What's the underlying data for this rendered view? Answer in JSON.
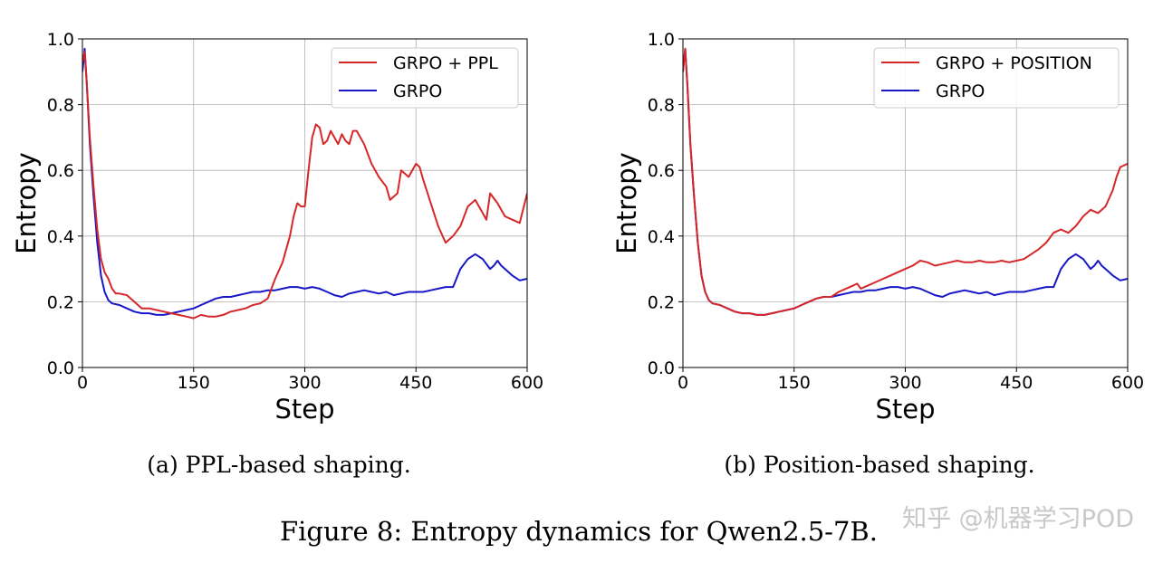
{
  "figure": {
    "caption": "Figure 8: Entropy dynamics for Qwen2.5-7B.",
    "watermark": "知乎 @机器学习POD"
  },
  "chart_data": [
    {
      "type": "line",
      "subcaption": "(a)  PPL-based shaping.",
      "xlabel": "Step",
      "ylabel": "Entropy",
      "xlim": [
        0,
        600
      ],
      "ylim": [
        0.0,
        1.0
      ],
      "xticks": [
        "0",
        "150",
        "300",
        "450",
        "600"
      ],
      "yticks": [
        "0.0",
        "0.2",
        "0.4",
        "0.6",
        "0.8",
        "1.0"
      ],
      "grid": true,
      "legend_position": "top-right",
      "series": [
        {
          "name": "GRPO + PPL",
          "color": "#d62728",
          "x": [
            0,
            3,
            6,
            10,
            15,
            20,
            25,
            30,
            35,
            40,
            45,
            50,
            60,
            70,
            80,
            90,
            100,
            110,
            120,
            130,
            140,
            150,
            160,
            170,
            180,
            190,
            200,
            210,
            220,
            230,
            240,
            250,
            260,
            270,
            275,
            280,
            285,
            290,
            295,
            300,
            305,
            310,
            315,
            320,
            325,
            330,
            335,
            340,
            345,
            350,
            355,
            360,
            365,
            370,
            375,
            380,
            390,
            400,
            410,
            415,
            420,
            425,
            430,
            435,
            440,
            445,
            450,
            455,
            460,
            470,
            480,
            490,
            500,
            510,
            520,
            530,
            540,
            545,
            550,
            560,
            570,
            580,
            590,
            600
          ],
          "y": [
            0.93,
            0.96,
            0.86,
            0.7,
            0.55,
            0.42,
            0.33,
            0.29,
            0.27,
            0.24,
            0.225,
            0.225,
            0.22,
            0.2,
            0.18,
            0.18,
            0.175,
            0.17,
            0.165,
            0.16,
            0.155,
            0.15,
            0.16,
            0.155,
            0.155,
            0.16,
            0.17,
            0.175,
            0.18,
            0.19,
            0.195,
            0.21,
            0.27,
            0.32,
            0.36,
            0.4,
            0.46,
            0.5,
            0.49,
            0.49,
            0.6,
            0.7,
            0.74,
            0.73,
            0.68,
            0.69,
            0.72,
            0.7,
            0.68,
            0.71,
            0.69,
            0.68,
            0.72,
            0.72,
            0.7,
            0.68,
            0.62,
            0.58,
            0.55,
            0.51,
            0.52,
            0.53,
            0.6,
            0.59,
            0.58,
            0.6,
            0.62,
            0.61,
            0.57,
            0.5,
            0.43,
            0.38,
            0.4,
            0.43,
            0.49,
            0.51,
            0.47,
            0.45,
            0.53,
            0.5,
            0.46,
            0.45,
            0.44,
            0.53
          ]
        },
        {
          "name": "GRPO",
          "color": "#1717c8",
          "x": [
            0,
            3,
            6,
            10,
            15,
            20,
            25,
            30,
            35,
            40,
            50,
            60,
            70,
            80,
            90,
            100,
            110,
            120,
            130,
            140,
            150,
            160,
            170,
            180,
            190,
            200,
            210,
            220,
            230,
            240,
            250,
            260,
            270,
            280,
            290,
            300,
            310,
            320,
            330,
            340,
            350,
            360,
            370,
            380,
            390,
            400,
            410,
            420,
            430,
            440,
            450,
            460,
            470,
            480,
            490,
            500,
            510,
            520,
            530,
            540,
            550,
            555,
            560,
            565,
            570,
            580,
            590,
            600
          ],
          "y": [
            0.9,
            0.97,
            0.86,
            0.68,
            0.52,
            0.38,
            0.28,
            0.23,
            0.205,
            0.195,
            0.19,
            0.18,
            0.17,
            0.165,
            0.165,
            0.16,
            0.16,
            0.165,
            0.17,
            0.175,
            0.18,
            0.19,
            0.2,
            0.21,
            0.215,
            0.215,
            0.22,
            0.225,
            0.23,
            0.23,
            0.235,
            0.235,
            0.24,
            0.245,
            0.245,
            0.24,
            0.245,
            0.24,
            0.23,
            0.22,
            0.215,
            0.225,
            0.23,
            0.235,
            0.23,
            0.225,
            0.23,
            0.22,
            0.225,
            0.23,
            0.23,
            0.23,
            0.235,
            0.24,
            0.245,
            0.245,
            0.3,
            0.33,
            0.345,
            0.33,
            0.3,
            0.31,
            0.325,
            0.31,
            0.3,
            0.28,
            0.265,
            0.27
          ]
        }
      ]
    },
    {
      "type": "line",
      "subcaption": "(b)  Position-based shaping.",
      "xlabel": "Step",
      "ylabel": "Entropy",
      "xlim": [
        0,
        600
      ],
      "ylim": [
        0.0,
        1.0
      ],
      "xticks": [
        "0",
        "150",
        "300",
        "450",
        "600"
      ],
      "yticks": [
        "0.0",
        "0.2",
        "0.4",
        "0.6",
        "0.8",
        "1.0"
      ],
      "grid": true,
      "legend_position": "top-right",
      "series": [
        {
          "name": "GRPO + POSITION",
          "color": "#d62728",
          "x": [
            0,
            3,
            6,
            10,
            15,
            20,
            25,
            30,
            35,
            40,
            50,
            60,
            70,
            80,
            90,
            100,
            110,
            120,
            130,
            140,
            150,
            160,
            170,
            180,
            190,
            200,
            210,
            220,
            230,
            235,
            240,
            250,
            260,
            270,
            280,
            290,
            300,
            310,
            320,
            330,
            340,
            350,
            360,
            370,
            380,
            390,
            400,
            410,
            420,
            430,
            440,
            450,
            460,
            470,
            480,
            490,
            500,
            510,
            520,
            530,
            540,
            550,
            560,
            570,
            580,
            585,
            590,
            600
          ],
          "y": [
            0.9,
            0.97,
            0.86,
            0.68,
            0.52,
            0.38,
            0.28,
            0.23,
            0.205,
            0.195,
            0.19,
            0.18,
            0.17,
            0.165,
            0.165,
            0.16,
            0.16,
            0.165,
            0.17,
            0.175,
            0.18,
            0.19,
            0.2,
            0.21,
            0.215,
            0.215,
            0.23,
            0.24,
            0.25,
            0.255,
            0.24,
            0.25,
            0.26,
            0.27,
            0.28,
            0.29,
            0.3,
            0.31,
            0.325,
            0.32,
            0.31,
            0.315,
            0.32,
            0.325,
            0.32,
            0.32,
            0.325,
            0.32,
            0.32,
            0.325,
            0.32,
            0.325,
            0.33,
            0.345,
            0.36,
            0.38,
            0.41,
            0.42,
            0.41,
            0.43,
            0.46,
            0.48,
            0.47,
            0.49,
            0.54,
            0.58,
            0.61,
            0.62
          ]
        },
        {
          "name": "GRPO",
          "color": "#1717c8",
          "x": [
            0,
            3,
            6,
            10,
            15,
            20,
            25,
            30,
            35,
            40,
            50,
            60,
            70,
            80,
            90,
            100,
            110,
            120,
            130,
            140,
            150,
            160,
            170,
            180,
            190,
            200,
            210,
            220,
            230,
            240,
            250,
            260,
            270,
            280,
            290,
            300,
            310,
            320,
            330,
            340,
            350,
            360,
            370,
            380,
            390,
            400,
            410,
            420,
            430,
            440,
            450,
            460,
            470,
            480,
            490,
            500,
            510,
            520,
            530,
            540,
            550,
            555,
            560,
            565,
            570,
            580,
            590,
            600
          ],
          "y": [
            0.9,
            0.97,
            0.86,
            0.68,
            0.52,
            0.38,
            0.28,
            0.23,
            0.205,
            0.195,
            0.19,
            0.18,
            0.17,
            0.165,
            0.165,
            0.16,
            0.16,
            0.165,
            0.17,
            0.175,
            0.18,
            0.19,
            0.2,
            0.21,
            0.215,
            0.215,
            0.22,
            0.225,
            0.23,
            0.23,
            0.235,
            0.235,
            0.24,
            0.245,
            0.245,
            0.24,
            0.245,
            0.24,
            0.23,
            0.22,
            0.215,
            0.225,
            0.23,
            0.235,
            0.23,
            0.225,
            0.23,
            0.22,
            0.225,
            0.23,
            0.23,
            0.23,
            0.235,
            0.24,
            0.245,
            0.245,
            0.3,
            0.33,
            0.345,
            0.33,
            0.3,
            0.31,
            0.325,
            0.31,
            0.3,
            0.28,
            0.265,
            0.27
          ]
        }
      ]
    }
  ]
}
